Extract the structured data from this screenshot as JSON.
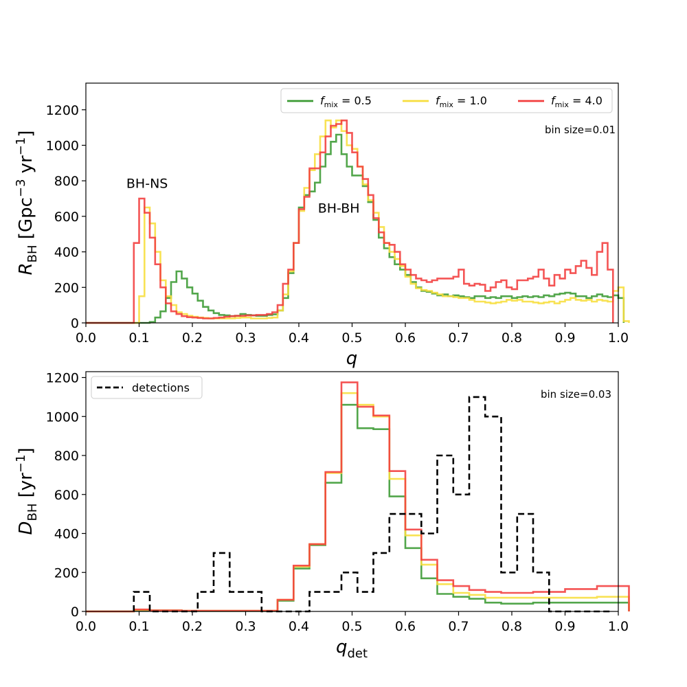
{
  "chart_data": [
    {
      "type": "step-histogram",
      "xlabel": "q",
      "ylabel_main": "R",
      "ylabel_sub": "BH",
      "ylabel_unit": "[Gpc",
      "ylabel_unit_exp1": "−3",
      "ylabel_unit_mid": " yr",
      "ylabel_unit_exp2": "−1",
      "ylabel_unit_end": "]",
      "xlim": [
        0.0,
        1.0
      ],
      "ylim": [
        0,
        1350
      ],
      "xticks": [
        0.0,
        0.1,
        0.2,
        0.3,
        0.4,
        0.5,
        0.6,
        0.7,
        0.8,
        0.9,
        1.0
      ],
      "xtick_labels": [
        "0.0",
        "0.1",
        "0.2",
        "0.3",
        "0.4",
        "0.5",
        "0.6",
        "0.7",
        "0.8",
        "0.9",
        "1.0"
      ],
      "yticks": [
        0,
        200,
        400,
        600,
        800,
        1000,
        1200
      ],
      "ytick_labels": [
        "0",
        "200",
        "400",
        "600",
        "800",
        "1000",
        "1200"
      ],
      "bin_note": "bin size=0.01",
      "bin_width": 0.01,
      "x_start": 0.0,
      "annotations": [
        {
          "text": "BH-NS",
          "x": 0.115,
          "y": 760
        },
        {
          "text": "BH-BH",
          "x": 0.475,
          "y": 620
        }
      ],
      "legend": {
        "placement": "top-right",
        "entries": [
          {
            "base": "f",
            "sub": "mix",
            "rest": " = 0.5",
            "color": "#3a9a32"
          },
          {
            "base": "f",
            "sub": "mix",
            "rest": " = 1.0",
            "color": "#f7de3c"
          },
          {
            "base": "f",
            "sub": "mix",
            "rest": " = 4.0",
            "color": "#f23c3c"
          }
        ]
      },
      "series": [
        {
          "name": "f_mix = 0.5",
          "color": "#3a9a32",
          "values": [
            0,
            0,
            0,
            0,
            0,
            0,
            0,
            0,
            0,
            0,
            0,
            0,
            5,
            30,
            65,
            140,
            230,
            290,
            250,
            200,
            165,
            125,
            90,
            70,
            55,
            45,
            42,
            38,
            40,
            50,
            45,
            42,
            40,
            40,
            45,
            48,
            70,
            140,
            280,
            450,
            650,
            720,
            740,
            790,
            880,
            950,
            1020,
            1060,
            950,
            880,
            830,
            830,
            770,
            680,
            580,
            480,
            420,
            370,
            330,
            300,
            270,
            230,
            200,
            180,
            175,
            165,
            155,
            160,
            150,
            155,
            150,
            145,
            140,
            150,
            150,
            140,
            145,
            140,
            150,
            150,
            140,
            145,
            150,
            145,
            150,
            145,
            155,
            150,
            160,
            165,
            170,
            165,
            150,
            150,
            140,
            150,
            160,
            150,
            145,
            155,
            140
          ]
        },
        {
          "name": "f_mix = 1.0",
          "color": "#f7de3c",
          "values": [
            0,
            0,
            0,
            0,
            0,
            0,
            0,
            0,
            0,
            0,
            150,
            650,
            560,
            400,
            240,
            150,
            100,
            60,
            50,
            40,
            35,
            30,
            28,
            25,
            25,
            25,
            25,
            25,
            28,
            30,
            30,
            25,
            25,
            25,
            28,
            30,
            70,
            160,
            290,
            450,
            630,
            760,
            860,
            950,
            1050,
            1140,
            1100,
            1140,
            1080,
            1000,
            980,
            880,
            780,
            690,
            620,
            540,
            450,
            400,
            360,
            320,
            260,
            220,
            195,
            185,
            180,
            170,
            160,
            150,
            150,
            145,
            140,
            140,
            130,
            120,
            120,
            115,
            110,
            115,
            120,
            130,
            125,
            130,
            120,
            120,
            115,
            110,
            115,
            120,
            110,
            120,
            130,
            140,
            130,
            125,
            130,
            120,
            130,
            125,
            120,
            180,
            200,
            10
          ]
        },
        {
          "name": "f_mix = 4.0",
          "color": "#f23c3c",
          "values": [
            0,
            0,
            0,
            0,
            0,
            0,
            0,
            0,
            0,
            450,
            700,
            620,
            480,
            330,
            200,
            110,
            65,
            50,
            38,
            32,
            30,
            28,
            25,
            25,
            28,
            30,
            35,
            38,
            40,
            40,
            42,
            42,
            45,
            45,
            50,
            60,
            100,
            220,
            300,
            450,
            640,
            710,
            870,
            870,
            960,
            1050,
            1110,
            1120,
            1140,
            1070,
            960,
            880,
            810,
            720,
            590,
            510,
            450,
            440,
            400,
            330,
            300,
            270,
            250,
            240,
            230,
            240,
            250,
            250,
            250,
            260,
            300,
            220,
            210,
            220,
            215,
            180,
            200,
            230,
            240,
            200,
            190,
            240,
            240,
            250,
            260,
            300,
            250,
            210,
            270,
            250,
            300,
            280,
            320,
            350,
            310,
            270,
            400,
            450,
            300
          ]
        }
      ]
    },
    {
      "type": "step-histogram",
      "xlabel_main": "q",
      "xlabel_sub": "det",
      "ylabel_main": "D",
      "ylabel_sub": "BH",
      "ylabel_unit": "[yr",
      "ylabel_unit_exp": "−1",
      "ylabel_unit_end": "]",
      "xlim": [
        0.0,
        1.0
      ],
      "ylim": [
        0,
        1230
      ],
      "xticks": [
        0.0,
        0.1,
        0.2,
        0.3,
        0.4,
        0.5,
        0.6,
        0.7,
        0.8,
        0.9,
        1.0
      ],
      "xtick_labels": [
        "0.0",
        "0.1",
        "0.2",
        "0.3",
        "0.4",
        "0.5",
        "0.6",
        "0.7",
        "0.8",
        "0.9",
        "1.0"
      ],
      "yticks": [
        0,
        200,
        400,
        600,
        800,
        1000,
        1200
      ],
      "ytick_labels": [
        "0",
        "200",
        "400",
        "600",
        "800",
        "1000",
        "1200"
      ],
      "bin_note": "bin size=0.03",
      "bin_width": 0.03,
      "x_start": 0.0,
      "legend": {
        "placement": "top-left",
        "entries": [
          {
            "label": "detections",
            "color": "#000000",
            "dashed": true
          }
        ]
      },
      "series": [
        {
          "name": "f_mix = 0.5",
          "color": "#3a9a32",
          "values": [
            0,
            0,
            0,
            5,
            5,
            5,
            2,
            2,
            2,
            2,
            2,
            2,
            55,
            220,
            340,
            660,
            1060,
            940,
            935,
            590,
            325,
            170,
            90,
            75,
            65,
            45,
            40,
            40,
            45,
            45,
            45,
            45,
            45,
            45
          ]
        },
        {
          "name": "f_mix = 1.0",
          "color": "#f7de3c",
          "values": [
            0,
            0,
            0,
            8,
            5,
            5,
            3,
            3,
            3,
            3,
            3,
            3,
            60,
            230,
            345,
            710,
            1120,
            1060,
            1000,
            680,
            390,
            240,
            140,
            95,
            85,
            70,
            70,
            70,
            70,
            70,
            70,
            70,
            75,
            75
          ]
        },
        {
          "name": "f_mix = 4.0",
          "color": "#f23c3c",
          "values": [
            0,
            0,
            0,
            10,
            5,
            5,
            3,
            3,
            3,
            3,
            3,
            3,
            60,
            235,
            345,
            715,
            1175,
            1050,
            1005,
            720,
            420,
            265,
            160,
            130,
            110,
            100,
            95,
            95,
            100,
            100,
            115,
            115,
            130,
            130
          ]
        },
        {
          "name": "detections",
          "color": "#000000",
          "dashed": true,
          "x_start": 0.09,
          "values": [
            100,
            0,
            0,
            0,
            100,
            300,
            100,
            100,
            0,
            0,
            0,
            100,
            100,
            200,
            100,
            300,
            500,
            500,
            400,
            800,
            600,
            1100,
            1000,
            200,
            500,
            200,
            0,
            0,
            0,
            0
          ]
        }
      ]
    }
  ]
}
